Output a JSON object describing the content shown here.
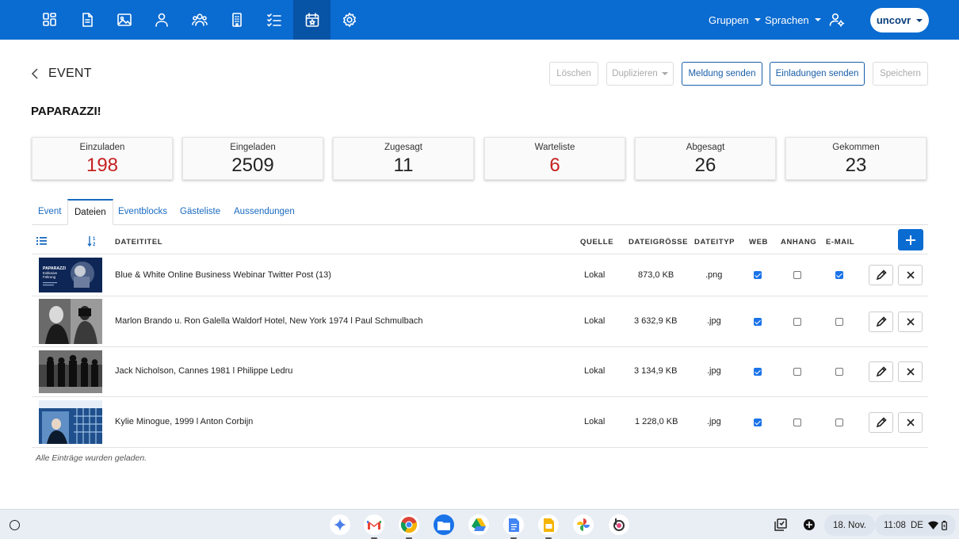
{
  "topbar": {
    "icons": [
      "dashboard-icon",
      "document-icon",
      "image-icon",
      "person-icon",
      "people-icon",
      "building-icon",
      "checklist-icon",
      "calendar-star-icon",
      "gear-icon"
    ],
    "active_icon": "calendar-star-icon",
    "menus": {
      "groups": "Gruppen",
      "languages": "Sprachen"
    },
    "user": "uncovr",
    "colors": {
      "bar": "#0a6bd1",
      "active": "#0753a6"
    }
  },
  "header": {
    "back_label": "EVENT",
    "buttons": {
      "delete": "Löschen",
      "duplicate": "Duplizieren",
      "send_message": "Meldung senden",
      "send_invitations": "Einladungen senden",
      "save": "Speichern"
    }
  },
  "event": {
    "title": "PAPARAZZI!"
  },
  "stats": [
    {
      "label": "Einzuladen",
      "value": "198",
      "color": "#c62020"
    },
    {
      "label": "Eingeladen",
      "value": "2509",
      "color": "#222222"
    },
    {
      "label": "Zugesagt",
      "value": "11",
      "color": "#222222"
    },
    {
      "label": "Warteliste",
      "value": "6",
      "color": "#c62020"
    },
    {
      "label": "Abgesagt",
      "value": "26",
      "color": "#222222"
    },
    {
      "label": "Gekommen",
      "value": "23",
      "color": "#222222"
    }
  ],
  "tabs": [
    "Event",
    "Dateien",
    "Eventblocks",
    "Gästeliste",
    "Aussendungen"
  ],
  "active_tab": "Dateien",
  "table": {
    "headers": {
      "title": "DATEITITEL",
      "source": "QUELLE",
      "size": "DATEIGRÖSSE",
      "type": "DATEITYP",
      "web": "WEB",
      "attachment": "ANHANG",
      "email": "E-MAIL"
    },
    "rows": [
      {
        "title": "Blue & White Online Business Webinar Twitter Post (13)",
        "source": "Lokal",
        "size": "873,0 KB",
        "type": ".png",
        "web": true,
        "attachment": false,
        "email": true
      },
      {
        "title": "Marlon Brando u. Ron Galella Waldorf Hotel, New York 1974 l Paul Schmulbach",
        "source": "Lokal",
        "size": "3 632,9 KB",
        "type": ".jpg",
        "web": true,
        "attachment": false,
        "email": false
      },
      {
        "title": "Jack Nicholson, Cannes 1981 l Philippe Ledru",
        "source": "Lokal",
        "size": "3 134,9 KB",
        "type": ".jpg",
        "web": true,
        "attachment": false,
        "email": false
      },
      {
        "title": "Kylie Minogue, 1999 l Anton Corbijn",
        "source": "Lokal",
        "size": "1 228,0 KB",
        "type": ".jpg",
        "web": true,
        "attachment": false,
        "email": false
      }
    ],
    "thumb1_text": {
      "line1": "PAPARAZZI",
      "line2": "Exklusive",
      "line3": "Führung"
    },
    "footer": "Alle Einträge wurden geladen."
  },
  "shelf": {
    "apps": [
      "gemini-icon",
      "gmail-icon",
      "chrome-icon",
      "files-icon",
      "drive-icon",
      "docs-icon",
      "slides-icon",
      "photos-icon",
      "app-icon"
    ],
    "date": "18. Nov.",
    "time": "11:08",
    "lang": "DE"
  }
}
